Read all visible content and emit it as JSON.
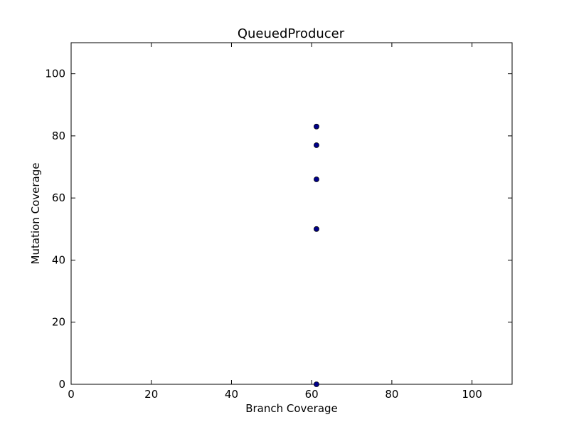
{
  "chart_data": {
    "type": "scatter",
    "title": "QueuedProducer",
    "xlabel": "Branch Coverage",
    "ylabel": "Mutation Coverage",
    "xlim": [
      0,
      110
    ],
    "ylim": [
      0,
      110
    ],
    "xticks": [
      0,
      20,
      40,
      60,
      80,
      100
    ],
    "yticks": [
      0,
      20,
      40,
      60,
      80,
      100
    ],
    "grid": false,
    "series": [
      {
        "color": "#00008b",
        "points": [
          {
            "x": 61.2,
            "y": 83
          },
          {
            "x": 61.2,
            "y": 77
          },
          {
            "x": 61.2,
            "y": 66
          },
          {
            "x": 61.2,
            "y": 50
          },
          {
            "x": 61.2,
            "y": 0
          }
        ]
      }
    ]
  }
}
